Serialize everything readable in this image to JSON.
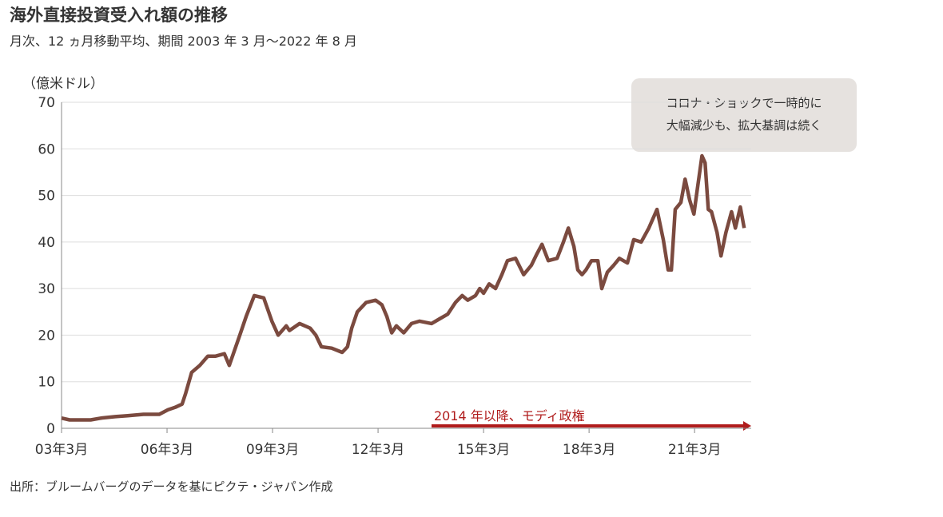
{
  "chart_data": {
    "type": "line",
    "title": "海外直接投資受入れ額の推移",
    "subtitle": "月次、12 ヵ月移動平均、期間 2003 年 3 月～2022 年 8 月",
    "y_label": "（億米ドル）",
    "source": "出所：ブルームバーグのデータを基にピクテ・ジャパン作成",
    "annotations": [
      "2014 年以降、モディ政権",
      "コロナ・ショックで一時的に",
      "大幅減少も、拡大基調は続く"
    ],
    "grid": true,
    "xlim": [
      2003.17,
      2022.78
    ],
    "ylim": [
      0,
      70
    ],
    "yticks": [
      0,
      10,
      20,
      30,
      40,
      50,
      60,
      70
    ],
    "xticks": [
      {
        "value": 2003.17,
        "label": "03年3月"
      },
      {
        "value": 2006.17,
        "label": "06年3月"
      },
      {
        "value": 2009.17,
        "label": "09年3月"
      },
      {
        "value": 2012.17,
        "label": "12年3月"
      },
      {
        "value": 2015.17,
        "label": "15年3月"
      },
      {
        "value": 2018.17,
        "label": "18年3月"
      },
      {
        "value": 2021.17,
        "label": "21年3月"
      }
    ],
    "series": [
      {
        "name": "海外直接投資受入れ額",
        "color": "#7b4a3f",
        "x": [
          2003.17,
          2003.4,
          2003.6,
          2004.0,
          2004.3,
          2004.7,
          2005.05,
          2005.5,
          2005.95,
          2006.2,
          2006.4,
          2006.6,
          2006.7,
          2006.87,
          2007.1,
          2007.33,
          2007.55,
          2007.8,
          2007.94,
          2008.24,
          2008.42,
          2008.65,
          2008.92,
          2009.15,
          2009.33,
          2009.56,
          2009.65,
          2009.94,
          2010.24,
          2010.4,
          2010.56,
          2010.85,
          2011.15,
          2011.3,
          2011.42,
          2011.58,
          2011.83,
          2012.1,
          2012.28,
          2012.42,
          2012.56,
          2012.69,
          2012.9,
          2013.12,
          2013.35,
          2013.69,
          2013.92,
          2014.15,
          2014.37,
          2014.56,
          2014.72,
          2014.94,
          2015.06,
          2015.17,
          2015.33,
          2015.51,
          2015.69,
          2015.85,
          2016.08,
          2016.31,
          2016.53,
          2016.69,
          2016.83,
          2017.01,
          2017.26,
          2017.44,
          2017.58,
          2017.74,
          2017.85,
          2017.97,
          2018.08,
          2018.24,
          2018.42,
          2018.53,
          2018.69,
          2018.87,
          2019.03,
          2019.26,
          2019.44,
          2019.65,
          2019.87,
          2020.1,
          2020.28,
          2020.42,
          2020.51,
          2020.62,
          2020.78,
          2020.9,
          2021.03,
          2021.15,
          2021.26,
          2021.38,
          2021.47,
          2021.56,
          2021.65,
          2021.81,
          2021.92,
          2022.06,
          2022.22,
          2022.33,
          2022.47,
          2022.58
        ],
        "values": [
          2.2,
          1.8,
          1.8,
          1.8,
          2.2,
          2.5,
          2.7,
          3.0,
          3.0,
          4.0,
          4.5,
          5.2,
          7.5,
          12,
          13.5,
          15.5,
          15.5,
          16,
          13.5,
          20,
          24,
          28.5,
          28,
          23,
          20,
          22,
          21,
          22.5,
          21.5,
          20,
          17.5,
          17.2,
          16.3,
          17.5,
          21.5,
          25,
          27,
          27.5,
          26.5,
          24,
          20.5,
          22,
          20.5,
          22.5,
          23,
          22.5,
          23.5,
          24.5,
          27,
          28.5,
          27.5,
          28.5,
          30,
          29,
          31,
          30,
          33,
          36,
          36.5,
          33,
          35,
          37.5,
          39.5,
          36,
          36.5,
          40,
          43,
          39,
          34,
          33,
          34,
          36,
          36,
          30,
          33.5,
          35,
          36.5,
          35.5,
          40.5,
          40,
          43,
          47,
          40.5,
          34,
          34,
          47,
          48.5,
          53.5,
          49,
          46,
          52,
          58.5,
          57,
          47,
          46.5,
          42,
          37,
          42,
          46.5,
          43,
          47.5,
          43
        ]
      }
    ]
  }
}
